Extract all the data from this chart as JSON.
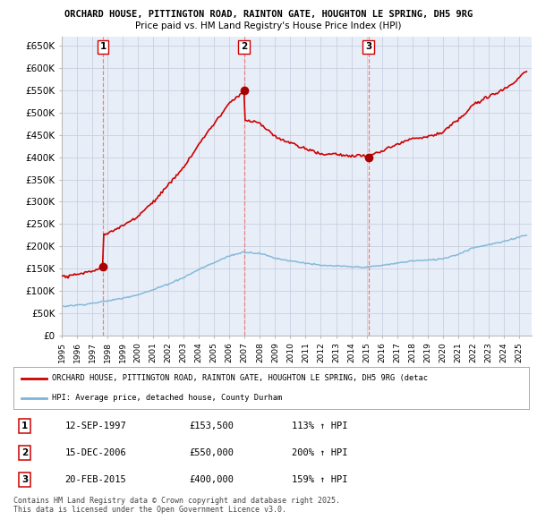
{
  "title": "ORCHARD HOUSE, PITTINGTON ROAD, RAINTON GATE, HOUGHTON LE SPRING, DH5 9RG",
  "subtitle": "Price paid vs. HM Land Registry's House Price Index (HPI)",
  "bg_color": "#ffffff",
  "plot_bg_color": "#e8eef8",
  "grid_color": "#c8d0e0",
  "ylim": [
    0,
    670000
  ],
  "yticks": [
    0,
    50000,
    100000,
    150000,
    200000,
    250000,
    300000,
    350000,
    400000,
    450000,
    500000,
    550000,
    600000,
    650000
  ],
  "ytick_labels": [
    "£0",
    "£50K",
    "£100K",
    "£150K",
    "£200K",
    "£250K",
    "£300K",
    "£350K",
    "£400K",
    "£450K",
    "£500K",
    "£550K",
    "£600K",
    "£650K"
  ],
  "sale_year_nums": [
    1997.706,
    2006.958,
    2015.125
  ],
  "sale_prices": [
    153500,
    550000,
    400000
  ],
  "sale_labels": [
    "1",
    "2",
    "3"
  ],
  "legend_line1": "ORCHARD HOUSE, PITTINGTON ROAD, RAINTON GATE, HOUGHTON LE SPRING, DH5 9RG (detac",
  "legend_line2": "HPI: Average price, detached house, County Durham",
  "table_rows": [
    [
      "1",
      "12-SEP-1997",
      "£153,500",
      "113% ↑ HPI"
    ],
    [
      "2",
      "15-DEC-2006",
      "£550,000",
      "200% ↑ HPI"
    ],
    [
      "3",
      "20-FEB-2015",
      "£400,000",
      "159% ↑ HPI"
    ]
  ],
  "footer": "Contains HM Land Registry data © Crown copyright and database right 2025.\nThis data is licensed under the Open Government Licence v3.0.",
  "red_line_color": "#cc0000",
  "blue_line_color": "#7ab4d8",
  "dashed_red": "#e88080",
  "marker_color": "#aa0000",
  "hpi_knots": [
    1995,
    1996,
    1997,
    1998,
    1999,
    2000,
    2001,
    2002,
    2003,
    2004,
    2005,
    2006,
    2007,
    2008,
    2009,
    2010,
    2011,
    2012,
    2013,
    2014,
    2015,
    2016,
    2017,
    2018,
    2019,
    2020,
    2021,
    2022,
    2023,
    2024,
    2025.5
  ],
  "hpi_vals": [
    65000,
    68000,
    72000,
    78000,
    84000,
    92000,
    103000,
    116000,
    130000,
    148000,
    163000,
    178000,
    188000,
    185000,
    174000,
    168000,
    163000,
    158000,
    157000,
    155000,
    154000,
    158000,
    163000,
    168000,
    170000,
    173000,
    183000,
    198000,
    205000,
    212000,
    228000
  ]
}
